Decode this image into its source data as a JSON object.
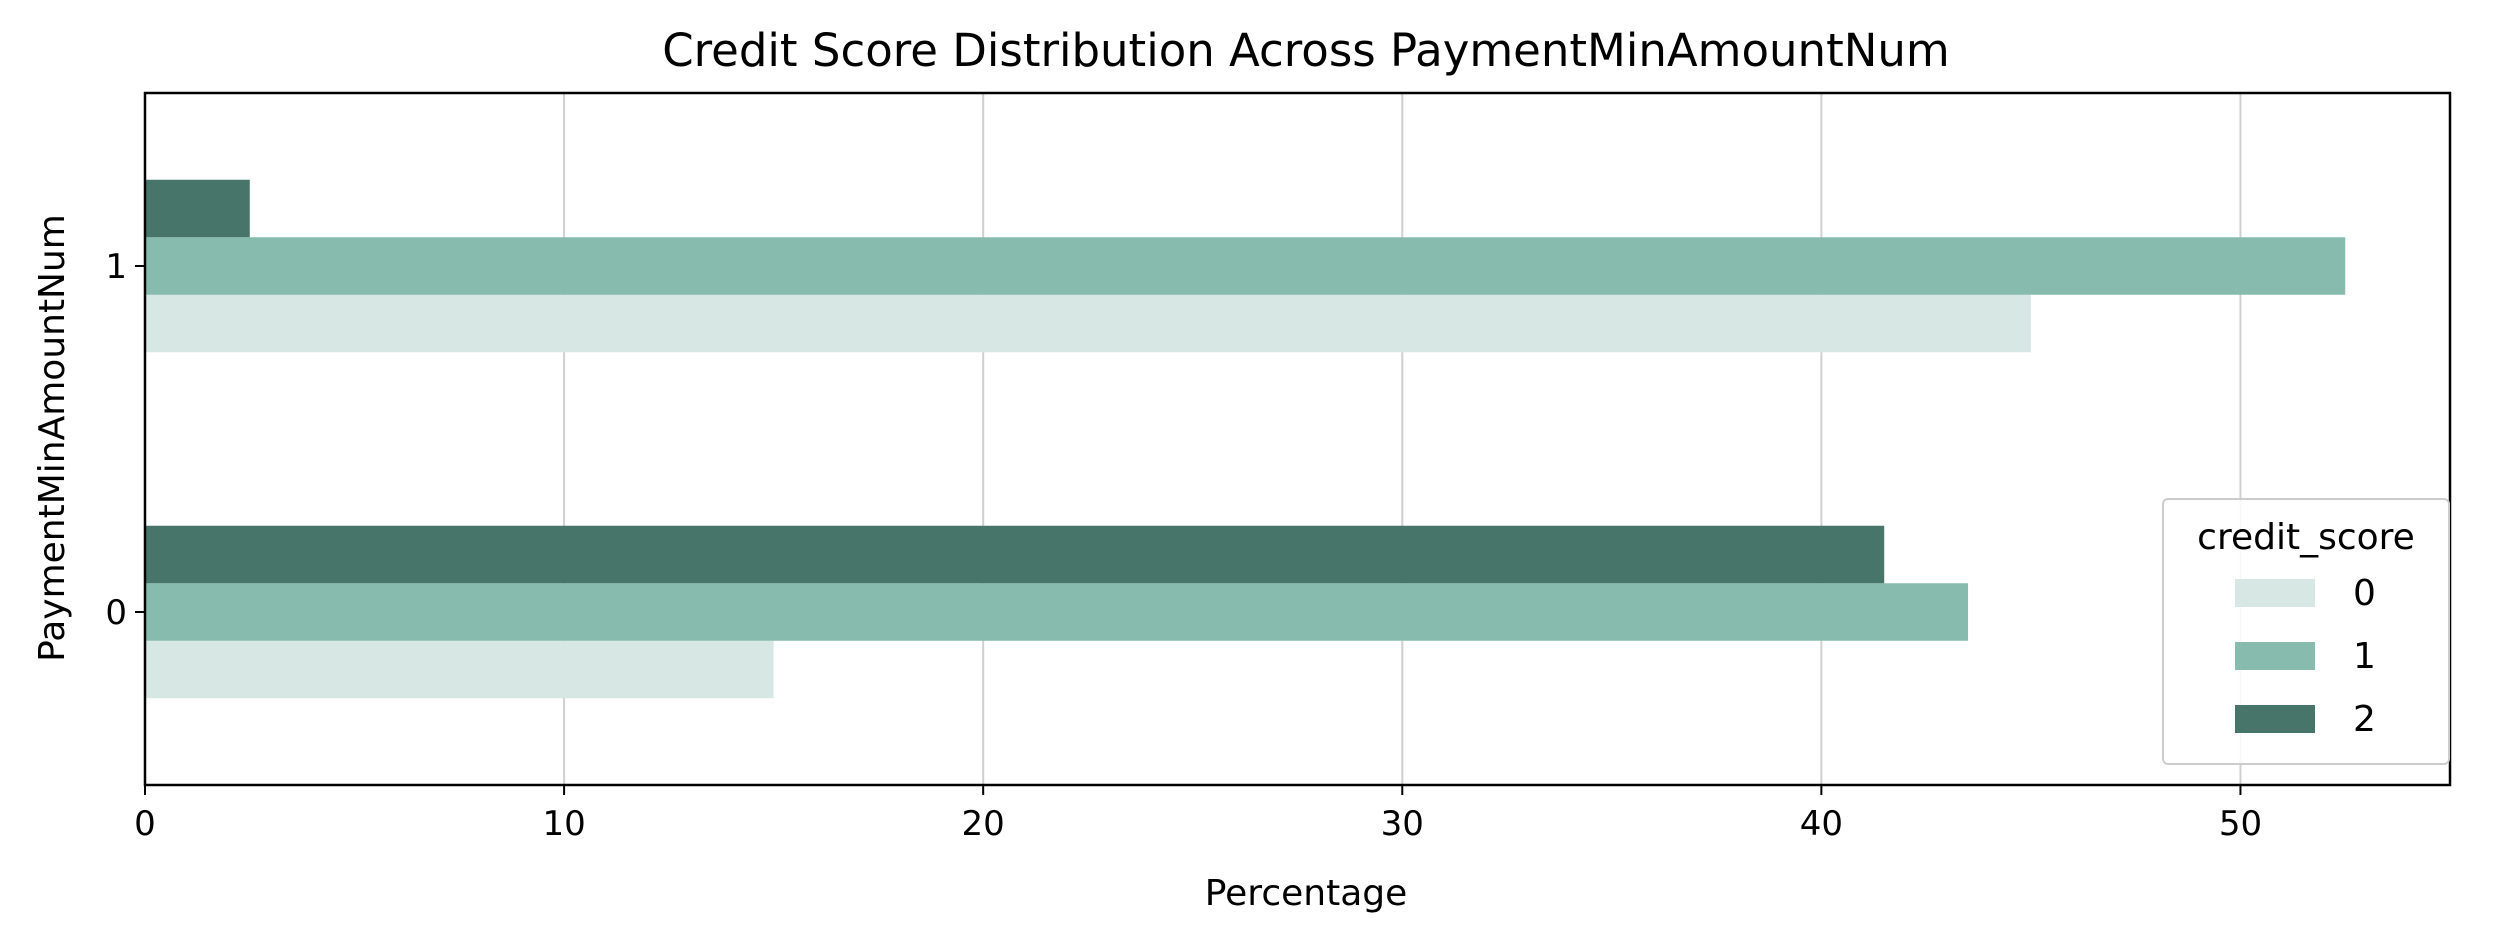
{
  "chart_data": {
    "type": "bar",
    "orientation": "horizontal",
    "title": "Credit Score Distribution Across PaymentMinAmountNum",
    "xlabel": "Percentage",
    "ylabel": "PaymentMinAmountNum",
    "categories": [
      "1",
      "0"
    ],
    "xlim": [
      0,
      55
    ],
    "xticks": [
      0,
      10,
      20,
      30,
      40,
      50
    ],
    "grid": "vertical",
    "legend_title": "credit_score",
    "legend_placement": "lower-right",
    "series": [
      {
        "name": "0",
        "color": "#d7e7e4",
        "values": [
          45.0,
          15.0
        ]
      },
      {
        "name": "1",
        "color": "#87bbad",
        "values": [
          52.5,
          43.5
        ]
      },
      {
        "name": "2",
        "color": "#47756a",
        "values": [
          2.5,
          41.5
        ]
      }
    ]
  }
}
